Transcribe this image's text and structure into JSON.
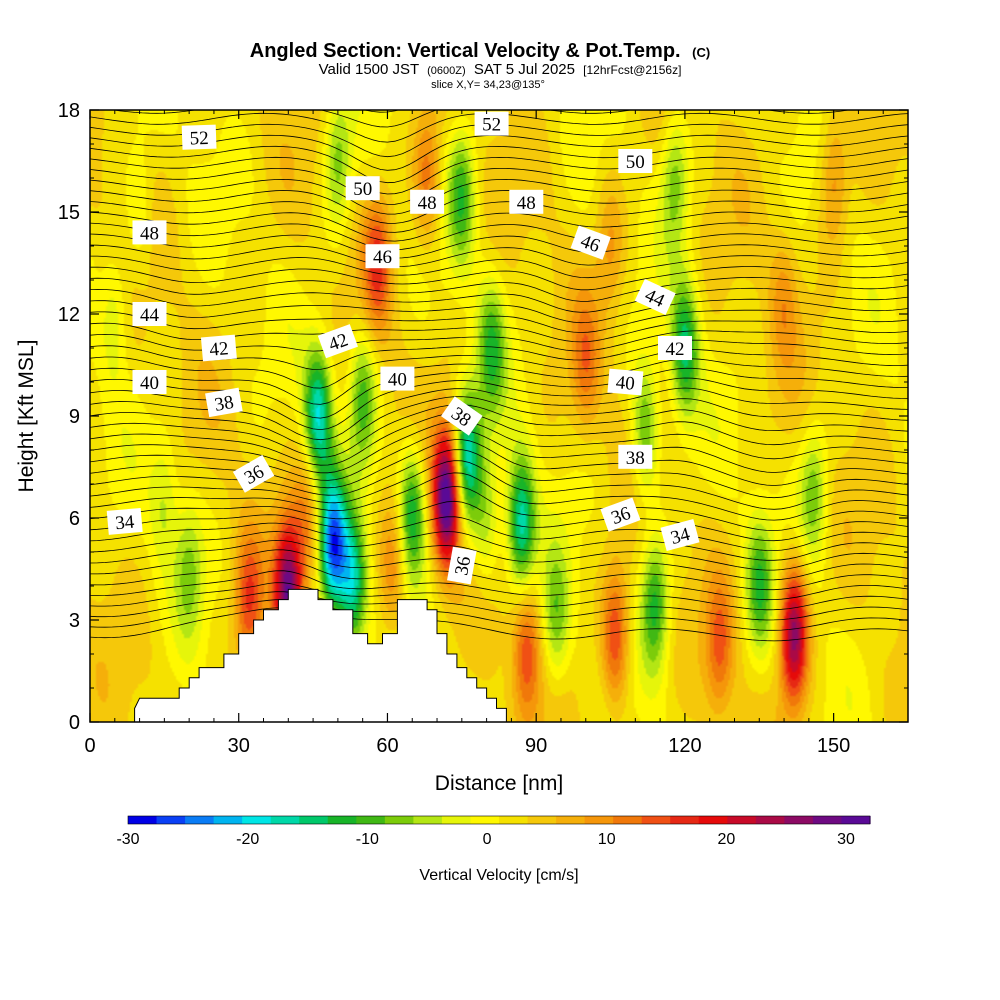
{
  "title": {
    "main": "Angled Section: Vertical Velocity & Pot.Temp.",
    "main_suffix": "(C)",
    "valid_prefix": "Valid 1500 JST",
    "valid_utc": "(0600Z)",
    "valid_date": "SAT 5 Jul 2025",
    "forecast": "[12hrFcst@2156z]",
    "slice": "slice X,Y= 34,23@135°"
  },
  "chart_data": {
    "type": "heatmap",
    "xlabel": "Distance [nm]",
    "ylabel": "Height [Kft MSL]",
    "xlim": [
      0,
      165
    ],
    "ylim": [
      0,
      18
    ],
    "xticks": [
      0,
      30,
      60,
      90,
      120,
      150
    ],
    "yticks": [
      0,
      3,
      6,
      9,
      12,
      15,
      18
    ],
    "colorbar": {
      "label": "Vertical Velocity [cm/s]",
      "range": [
        -30,
        32
      ],
      "ticks": [
        -30,
        -20,
        -10,
        0,
        10,
        20,
        30
      ],
      "colors": [
        "#0000e6",
        "#0a40f5",
        "#0a7cf5",
        "#00b4f0",
        "#00e6e6",
        "#00d8a8",
        "#00c86a",
        "#18b428",
        "#40b814",
        "#7ccc0a",
        "#b4e614",
        "#e6f50a",
        "#fff800",
        "#f5e100",
        "#f5c80a",
        "#f5af0a",
        "#f5960a",
        "#f0780a",
        "#f05014",
        "#e62814",
        "#e60a0a",
        "#c80a28",
        "#aa0a46",
        "#8c0a64",
        "#6e0a82",
        "#5a0a96"
      ]
    },
    "velocity_features": [
      {
        "x": 40,
        "z": 3.8,
        "w": 26
      },
      {
        "x": 44,
        "z": 6.2,
        "w": 8
      },
      {
        "x": 49,
        "z": 5.2,
        "w": -27
      },
      {
        "x": 53,
        "z": 4.0,
        "w": -18
      },
      {
        "x": 46,
        "z": 9.0,
        "w": -20
      },
      {
        "x": 55,
        "z": 9.5,
        "w": -12
      },
      {
        "x": 58,
        "z": 13.5,
        "w": 12
      },
      {
        "x": 65,
        "z": 6.2,
        "w": -16
      },
      {
        "x": 61,
        "z": 4.5,
        "w": 8
      },
      {
        "x": 72,
        "z": 6.6,
        "w": 30
      },
      {
        "x": 76,
        "z": 7.8,
        "w": -20
      },
      {
        "x": 80,
        "z": 6.0,
        "w": -8
      },
      {
        "x": 81,
        "z": 11.0,
        "w": -12
      },
      {
        "x": 87,
        "z": 5.8,
        "w": -20
      },
      {
        "x": 88,
        "z": 2.0,
        "w": 12
      },
      {
        "x": 94,
        "z": 3.0,
        "w": -10
      },
      {
        "x": 100,
        "z": 10.5,
        "w": 8
      },
      {
        "x": 106,
        "z": 2.5,
        "w": 14
      },
      {
        "x": 112,
        "z": 8.5,
        "w": -12
      },
      {
        "x": 114,
        "z": 3.5,
        "w": -14
      },
      {
        "x": 120,
        "z": 11.0,
        "w": -16
      },
      {
        "x": 127,
        "z": 2.2,
        "w": 10
      },
      {
        "x": 135,
        "z": 4.0,
        "w": -12
      },
      {
        "x": 142,
        "z": 2.6,
        "w": 24
      },
      {
        "x": 146,
        "z": 6.8,
        "w": -10
      },
      {
        "x": 32,
        "z": 3.5,
        "w": 12
      },
      {
        "x": 20,
        "z": 4.5,
        "w": -8
      },
      {
        "x": 15,
        "z": 6.5,
        "w": -6
      },
      {
        "x": 5,
        "z": 12.0,
        "w": -6
      },
      {
        "x": 10,
        "z": 15.0,
        "w": -5
      },
      {
        "x": 50,
        "z": 16.5,
        "w": -10
      },
      {
        "x": 68,
        "z": 16.0,
        "w": 10
      },
      {
        "x": 75,
        "z": 15.5,
        "w": -12
      },
      {
        "x": 105,
        "z": 14.0,
        "w": 6
      },
      {
        "x": 118,
        "z": 16.0,
        "w": -10
      },
      {
        "x": 140,
        "z": 12.5,
        "w": 6
      },
      {
        "x": 150,
        "z": 16.0,
        "w": 8
      }
    ],
    "terrain": [
      [
        0,
        0
      ],
      [
        9,
        0
      ],
      [
        9,
        0.4
      ],
      [
        10,
        0.7
      ],
      [
        18,
        0.7
      ],
      [
        18,
        1.0
      ],
      [
        20,
        1.0
      ],
      [
        20,
        1.3
      ],
      [
        22,
        1.3
      ],
      [
        22,
        1.6
      ],
      [
        27,
        1.6
      ],
      [
        27,
        2.0
      ],
      [
        30,
        2.0
      ],
      [
        30,
        2.6
      ],
      [
        33,
        2.6
      ],
      [
        33,
        3.0
      ],
      [
        35,
        3.0
      ],
      [
        35,
        3.3
      ],
      [
        38,
        3.3
      ],
      [
        38,
        3.6
      ],
      [
        40,
        3.6
      ],
      [
        40,
        3.9
      ],
      [
        46,
        3.9
      ],
      [
        46,
        3.6
      ],
      [
        49,
        3.6
      ],
      [
        49,
        3.3
      ],
      [
        53,
        3.3
      ],
      [
        53,
        2.6
      ],
      [
        56,
        2.6
      ],
      [
        56,
        2.3
      ],
      [
        59,
        2.3
      ],
      [
        59,
        2.6
      ],
      [
        62,
        2.6
      ],
      [
        62,
        3.6
      ],
      [
        68,
        3.6
      ],
      [
        68,
        3.3
      ],
      [
        70,
        3.3
      ],
      [
        70,
        2.6
      ],
      [
        72,
        2.6
      ],
      [
        72,
        2.0
      ],
      [
        74,
        2.0
      ],
      [
        74,
        1.6
      ],
      [
        76,
        1.6
      ],
      [
        76,
        1.3
      ],
      [
        78,
        1.3
      ],
      [
        78,
        1.0
      ],
      [
        80,
        1.0
      ],
      [
        80,
        0.7
      ],
      [
        82,
        0.7
      ],
      [
        82,
        0.4
      ],
      [
        84,
        0.4
      ],
      [
        84,
        0
      ],
      [
        0,
        0
      ]
    ],
    "theta_contours": {
      "start": 30,
      "end": 56,
      "step": 0.5
    },
    "contour_labels": [
      {
        "text": "52",
        "x": 22,
        "z": 17.2,
        "angle": -2
      },
      {
        "text": "52",
        "x": 81,
        "z": 17.6,
        "angle": 0
      },
      {
        "text": "50",
        "x": 55,
        "z": 15.7,
        "angle": 0
      },
      {
        "text": "50",
        "x": 110,
        "z": 16.5,
        "angle": 0
      },
      {
        "text": "48",
        "x": 12,
        "z": 14.4,
        "angle": 0
      },
      {
        "text": "48",
        "x": 68,
        "z": 15.3,
        "angle": 0
      },
      {
        "text": "48",
        "x": 88,
        "z": 15.3,
        "angle": 0
      },
      {
        "text": "46",
        "x": 59,
        "z": 13.7,
        "angle": 0
      },
      {
        "text": "46",
        "x": 101,
        "z": 14.1,
        "angle": 20
      },
      {
        "text": "44",
        "x": 12,
        "z": 12.0,
        "angle": 0
      },
      {
        "text": "44",
        "x": 114,
        "z": 12.5,
        "angle": 25
      },
      {
        "text": "42",
        "x": 26,
        "z": 11.0,
        "angle": -5
      },
      {
        "text": "42",
        "x": 50,
        "z": 11.2,
        "angle": -20
      },
      {
        "text": "42",
        "x": 118,
        "z": 11.0,
        "angle": 0
      },
      {
        "text": "40",
        "x": 12,
        "z": 10.0,
        "angle": 0
      },
      {
        "text": "40",
        "x": 62,
        "z": 10.1,
        "angle": 0
      },
      {
        "text": "40",
        "x": 108,
        "z": 10.0,
        "angle": 5
      },
      {
        "text": "38",
        "x": 27,
        "z": 9.4,
        "angle": -10
      },
      {
        "text": "38",
        "x": 75,
        "z": 9.0,
        "angle": 35
      },
      {
        "text": "38",
        "x": 110,
        "z": 7.8,
        "angle": 0
      },
      {
        "text": "36",
        "x": 33,
        "z": 7.3,
        "angle": -30
      },
      {
        "text": "36",
        "x": 75,
        "z": 4.6,
        "angle": -80
      },
      {
        "text": "36",
        "x": 107,
        "z": 6.1,
        "angle": -20
      },
      {
        "text": "34",
        "x": 7,
        "z": 5.9,
        "angle": -5
      },
      {
        "text": "34",
        "x": 119,
        "z": 5.5,
        "angle": -15
      }
    ]
  }
}
